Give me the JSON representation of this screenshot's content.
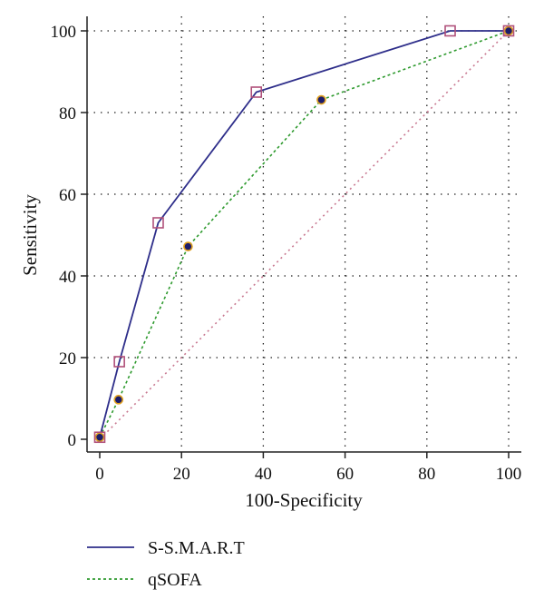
{
  "chart_data": {
    "type": "line",
    "xlabel": "100-Specificity",
    "ylabel": "Sensitivity",
    "xlim": [
      0,
      100
    ],
    "ylim": [
      0,
      100
    ],
    "xticks": [
      "0",
      "20",
      "40",
      "60",
      "80",
      "100"
    ],
    "yticks": [
      "0",
      "20",
      "40",
      "60",
      "80",
      "100"
    ],
    "grid": "dotted",
    "legend_position": "bottom",
    "series": [
      {
        "name": "S-S.M.A.R.T",
        "style": "solid",
        "marker": "square",
        "color": "#2e2e8a",
        "marker_color": "#b0507a",
        "points": [
          [
            0,
            0.5
          ],
          [
            4.8,
            19
          ],
          [
            14.3,
            53
          ],
          [
            38.3,
            85
          ],
          [
            85.7,
            100
          ],
          [
            100,
            100
          ]
        ]
      },
      {
        "name": "qSOFA",
        "style": "dotted",
        "marker": "circle",
        "color": "#2e9a2e",
        "marker_color": "#1c1c6a",
        "marker_edge": "#e0a020",
        "points": [
          [
            0,
            0.5
          ],
          [
            4.6,
            9.7
          ],
          [
            21.6,
            47.2
          ],
          [
            54.2,
            83.1
          ],
          [
            100,
            100
          ]
        ]
      },
      {
        "name": "",
        "style": "dotted",
        "color": "#c87890",
        "points": [
          [
            0,
            0
          ],
          [
            100,
            100
          ]
        ]
      }
    ]
  }
}
